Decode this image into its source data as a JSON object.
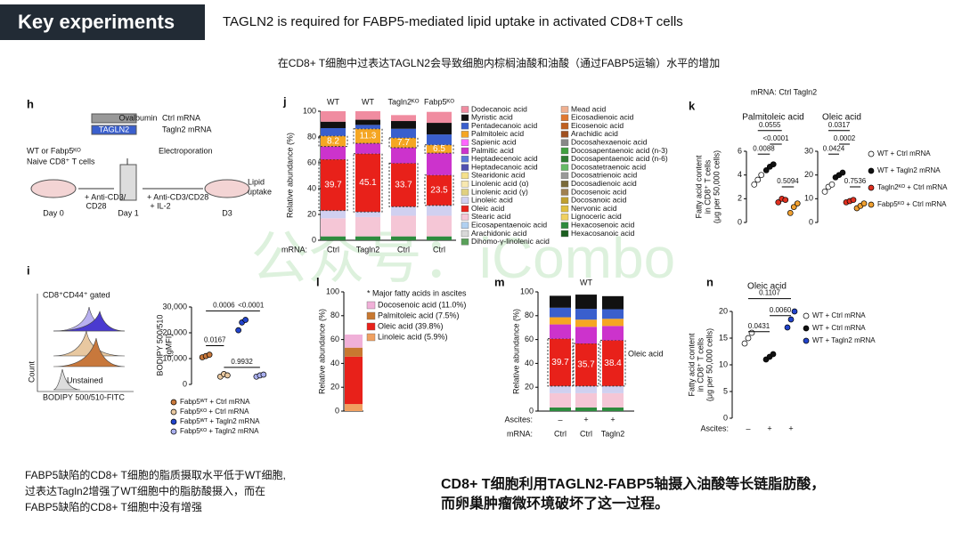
{
  "header": {
    "title": "Key experiments",
    "subtitle": "TAGLN2 is required for FABP5-mediated lipid uptake in activated CD8+T cells",
    "note": "在CD8+ T细胞中过表达TAGLN2会导致细胞内棕榈油酸和油酸（通过FABP5运输）水平的增加"
  },
  "panel_h": {
    "label": "h",
    "texts": [
      "Ovalbumin",
      "TAGLN2",
      "Ctrl mRNA",
      "Tagln2 mRNA",
      "WT or Fabp5ᴷᴼ",
      "Naive CD8⁺ T cells",
      "Electroporation",
      "+ Anti-CD3/",
      "CD28",
      "Day 0",
      "Day 1",
      "+ Anti-CD3/CD28",
      "+ IL-2",
      "D3",
      "Lipid",
      "uptake"
    ]
  },
  "panel_i": {
    "texts": [
      "CD8⁺CD44⁺ gated",
      "Count",
      "Unstained",
      "BODIPY 500/510-FITC"
    ]
  },
  "chart_data": [
    {
      "type": "dot",
      "panel": "i",
      "ylabel": [
        "BODIPY 500/510",
        "(gMFI)"
      ],
      "legend": [
        {
          "name": "Fabp5ᵂᵀ + Ctrl mRNA",
          "color": "#c8783c"
        },
        {
          "name": "Fabp5ᴷᴼ + Ctrl mRNA",
          "color": "#e8c8a0"
        },
        {
          "name": "Fabp5ᵂᵀ + Tagln2 mRNA",
          "color": "#2244cc"
        },
        {
          "name": "Fabp5ᴷᴼ + Tagln2 mRNA",
          "color": "#aab0ee"
        }
      ],
      "subplots": [
        {
          "ylim": [
            0,
            30000
          ],
          "yticks": [
            0,
            {
              "value": 10000,
              "label": "10,000"
            },
            {
              "value": 20000,
              "label": "20,000"
            },
            {
              "value": 30000,
              "label": "30,000"
            }
          ],
          "groups": [
            [
              10500,
              11000,
              11500
            ],
            [
              3000,
              4000,
              3500
            ],
            [
              21000,
              24000,
              25000
            ],
            [
              3000,
              3500,
              3800
            ]
          ],
          "p_values": [
            "0.0167",
            "0.0006",
            "<0.0001",
            "0.9932"
          ]
        }
      ]
    },
    {
      "type": "stacked",
      "panel": "j",
      "ylabel": "Relative abundance (%)",
      "ylim": [
        0,
        100
      ],
      "yticks": [
        0,
        20,
        40,
        60,
        80,
        100
      ],
      "headers": [
        "WT",
        "WT",
        "Tagln2ᴷᴼ",
        "Fabp5ᴷᴼ"
      ],
      "xlabel": "mRNA:",
      "categories": [
        "Ctrl",
        "Tagln2",
        "Ctrl",
        "Ctrl"
      ],
      "series": [
        {
          "color": "#2e8b3e",
          "values": [
            3,
            3,
            3,
            3
          ]
        },
        {
          "color": "#f5c6d6",
          "values": [
            14,
            15,
            16,
            16
          ]
        },
        {
          "color": "#d0d0f0",
          "values": [
            6,
            4,
            7,
            8
          ]
        },
        {
          "color": "#e8211a",
          "labeled": true,
          "values": [
            39.7,
            45.1,
            33.7,
            23.5
          ]
        },
        {
          "color": "#cc33cc",
          "values": [
            10,
            8,
            12,
            17
          ]
        },
        {
          "color": "#f5a623",
          "labeled": true,
          "values": [
            8.2,
            11.3,
            7.7,
            6.5
          ]
        },
        {
          "color": "#3a5fcd",
          "values": [
            6,
            3,
            7,
            8
          ]
        },
        {
          "color": "#111111",
          "values": [
            5,
            4,
            6,
            9
          ]
        },
        {
          "color": "#f08ca0",
          "values": [
            8.1,
            6.6,
            4.6,
            8.5
          ]
        }
      ],
      "legend": [
        {
          "name": "Dodecanoic acid",
          "color": "#f08ca0"
        },
        {
          "name": "Myristic acid",
          "color": "#111111"
        },
        {
          "name": "Pentadecanoic acid",
          "color": "#3a5fcd"
        },
        {
          "name": "Palmitoleic acid",
          "color": "#f5a623"
        },
        {
          "name": "Sapienic acid",
          "color": "#ff66ff"
        },
        {
          "name": "Palmitic acid",
          "color": "#cc33cc"
        },
        {
          "name": "Heptadecenoic acid",
          "color": "#5a7ad8"
        },
        {
          "name": "Heptadecanoic acid",
          "color": "#5050b0"
        },
        {
          "name": "Stearidonic acid",
          "color": "#f5e08a"
        },
        {
          "name": "Linolenic acid (α)",
          "color": "#f8e8b0"
        },
        {
          "name": "Linolenic acid (γ)",
          "color": "#e0d080"
        },
        {
          "name": "Linoleic acid",
          "color": "#d0d0f0"
        },
        {
          "name": "Oleic acid",
          "color": "#e8211a"
        },
        {
          "name": "Stearic acid",
          "color": "#f5c6d6"
        },
        {
          "name": "Eicosapentaenoic acid",
          "color": "#b0d0f0"
        },
        {
          "name": "Arachidonic acid",
          "color": "#d8d8d8"
        },
        {
          "name": "Dihomo-γ-linolenic acid",
          "color": "#5aa05a"
        },
        {
          "name": "Mead acid",
          "color": "#f0b090"
        },
        {
          "name": "Eicosadienoic acid",
          "color": "#e07830"
        },
        {
          "name": "Eicosenoic acid",
          "color": "#c06020"
        },
        {
          "name": "Arachidic acid",
          "color": "#a05020"
        },
        {
          "name": "Docosahexaenoic acid",
          "color": "#888888"
        },
        {
          "name": "Docosapentaenoic acid (n-3)",
          "color": "#40a040"
        },
        {
          "name": "Docosapentaenoic acid (n-6)",
          "color": "#2e7d32"
        },
        {
          "name": "Docosatetraenoic acid",
          "color": "#66bb66"
        },
        {
          "name": "Docosatrienoic acid",
          "color": "#999999"
        },
        {
          "name": "Docosadienoic acid",
          "color": "#7a6a3a"
        },
        {
          "name": "Docosenoic acid",
          "color": "#a08050"
        },
        {
          "name": "Docosanoic acid",
          "color": "#c0a030"
        },
        {
          "name": "Nervonic acid",
          "color": "#e0c040"
        },
        {
          "name": "Lignoceric acid",
          "color": "#f0d060"
        },
        {
          "name": "Hexacosenoic acid",
          "color": "#2e8b3e"
        },
        {
          "name": "Hexacosanoic acid",
          "color": "#1b5e20"
        }
      ]
    },
    {
      "type": "dot",
      "panel": "k",
      "note": "mRNA: Ctrl Tagln2",
      "ylabel": [
        "Fatty acid content",
        "in CD8⁺ T cells",
        "(μg per 50,000 cells)"
      ],
      "legend": [
        {
          "name": "WT + Ctrl mRNA",
          "color": "#ffffff"
        },
        {
          "name": "WT + Tagln2 mRNA",
          "color": "#111111"
        },
        {
          "name": "Tagln2ᴷᴼ + Ctrl mRNA",
          "color": "#e03020"
        },
        {
          "name": "Fabp5ᴷᴼ + Ctrl mRNA",
          "color": "#f0a030"
        }
      ],
      "subplots": [
        {
          "title": "Palmitoleic acid",
          "ylim": [
            0,
            6
          ],
          "yticks": [
            0,
            2,
            4,
            6
          ],
          "groups": [
            [
              3.2,
              3.6,
              4.0
            ],
            [
              4.4,
              4.7,
              4.9
            ],
            [
              1.7,
              2.0,
              1.9
            ],
            [
              0.8,
              1.3,
              1.6
            ]
          ],
          "p_values": [
            "0.0555",
            "0.0088",
            "<0.0001",
            "0.5094"
          ]
        },
        {
          "title": "Oleic acid",
          "ylim": [
            0,
            30
          ],
          "yticks": [
            0,
            10,
            20,
            30
          ],
          "groups": [
            [
              13,
              15,
              16
            ],
            [
              19,
              20,
              21
            ],
            [
              8.5,
              9,
              9.5
            ],
            [
              6,
              7,
              8
            ]
          ],
          "p_values": [
            "0.0317",
            "0.0424",
            "0.0002",
            "0.7536"
          ]
        }
      ]
    },
    {
      "type": "stacked",
      "panel": "l",
      "ylabel": "Relative abundance (%)",
      "ylim": [
        0,
        100
      ],
      "yticks": [
        0,
        20,
        40,
        60,
        80,
        100
      ],
      "categories": [
        null
      ],
      "legend_title": "* Major fatty acids in ascites",
      "series": [
        {
          "name": "Linoleic acid (5.9%)",
          "color": "#f0a060",
          "values": [
            5.9
          ]
        },
        {
          "name": "Oleic acid (39.8%)",
          "color": "#e8211a",
          "values": [
            39.8
          ]
        },
        {
          "name": "Palmitoleic acid (7.5%)",
          "color": "#c87830",
          "values": [
            7.5
          ]
        },
        {
          "name": "Docosenoic acid (11.0%)",
          "color": "#f0b0d8",
          "values": [
            11.0
          ]
        }
      ]
    },
    {
      "type": "stacked",
      "panel": "m",
      "header": "WT",
      "ylabel": "Relative abundance (%)",
      "ylim": [
        0,
        100
      ],
      "yticks": [
        0,
        20,
        40,
        60,
        80,
        100
      ],
      "xlabel": "mRNA:",
      "categories": [
        "Ctrl",
        "Ctrl",
        "Tagln2"
      ],
      "ascites": {
        "label": "Ascites:",
        "values": [
          "–",
          "+",
          "+"
        ]
      },
      "annotation": "Oleic acid",
      "series": [
        {
          "color": "#2e8b3e",
          "values": [
            3,
            3,
            3
          ]
        },
        {
          "color": "#f5c6d6",
          "values": [
            12,
            12,
            12
          ]
        },
        {
          "color": "#d0d0f0",
          "values": [
            6,
            6,
            6
          ]
        },
        {
          "color": "#e8211a",
          "labeled": true,
          "values": [
            39.7,
            35.7,
            38.4
          ]
        },
        {
          "color": "#cc33cc",
          "values": [
            12,
            14,
            12
          ]
        },
        {
          "color": "#f5a623",
          "values": [
            6,
            6,
            6
          ]
        },
        {
          "color": "#3a5fcd",
          "values": [
            8,
            9,
            8
          ]
        },
        {
          "color": "#111111",
          "values": [
            10,
            12,
            11
          ]
        }
      ]
    },
    {
      "type": "dot",
      "panel": "n",
      "ylabel": [
        "Fatty acid content",
        "in CD8⁺ T cells",
        "(μg per 50,000 cells)"
      ],
      "xlabel": "Ascites:",
      "categories": [
        "–",
        "+",
        "+"
      ],
      "legend": [
        {
          "name": "WT + Ctrl mRNA",
          "color": "#ffffff"
        },
        {
          "name": "WT + Ctrl mRNA",
          "color": "#111111"
        },
        {
          "name": "WT + Tagln2 mRNA",
          "color": "#2244cc"
        }
      ],
      "subplots": [
        {
          "title": "Oleic acid",
          "ylim": [
            0,
            20
          ],
          "yticks": [
            0,
            5,
            10,
            15,
            20
          ],
          "groups": [
            [
              14,
              15,
              16
            ],
            [
              11,
              11.5,
              12
            ],
            [
              17,
              18.5,
              20
            ]
          ],
          "p_values": [
            "0.1107",
            "0.0431",
            "0.0060"
          ]
        }
      ]
    }
  ],
  "watermark": "公众号：iCombo",
  "footer": {
    "left": [
      "FABP5缺陷的CD8+ T细胞的脂质摄取水平低于WT细胞,",
      "过表达Tagln2增强了WT细胞中的脂肪酸摄入，而在",
      "FABP5缺陷的CD8+ T细胞中没有增强"
    ],
    "right": [
      "CD8+ T细胞利用TAGLN2-FABP5轴摄入油酸等长链脂肪酸，",
      "而卵巢肿瘤微环境破坏了这一过程。"
    ]
  }
}
